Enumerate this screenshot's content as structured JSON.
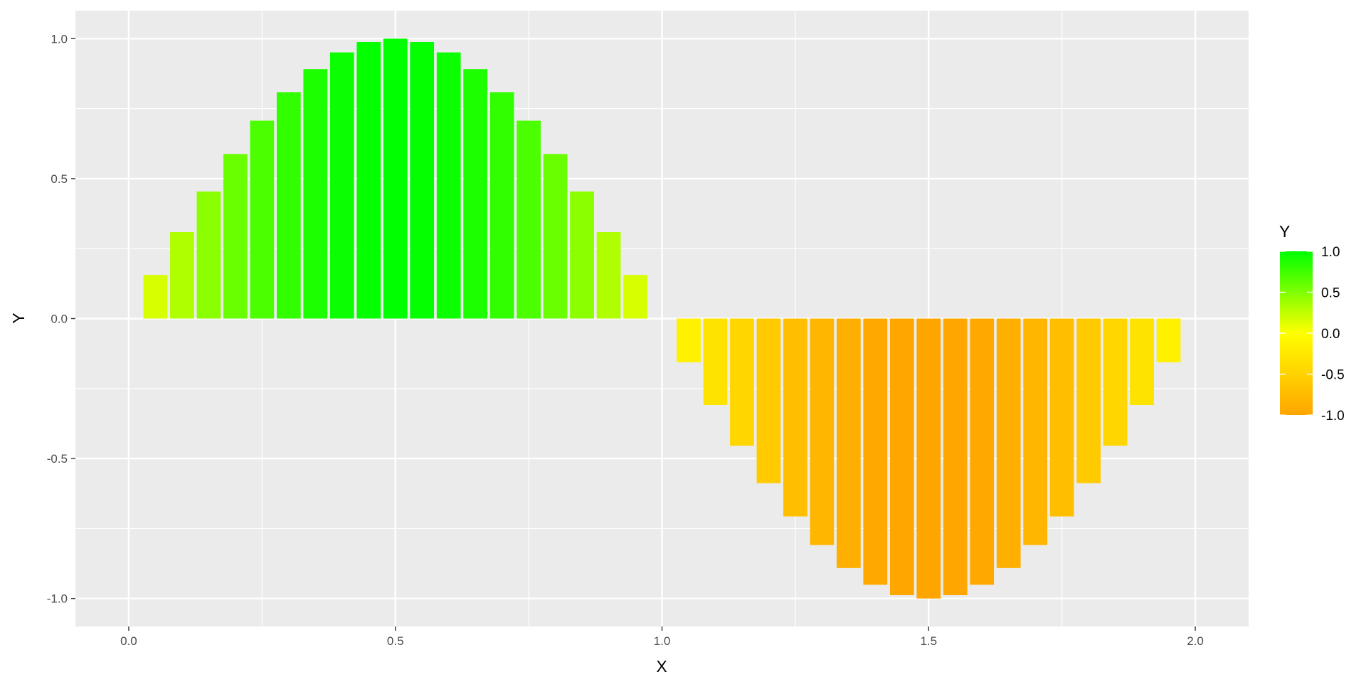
{
  "chart_data": {
    "type": "bar",
    "xlabel": "X",
    "ylabel": "Y",
    "xlim": [
      -0.1,
      2.1
    ],
    "ylim": [
      -1.1,
      1.1
    ],
    "x_ticks": [
      0.0,
      0.5,
      1.0,
      1.5,
      2.0
    ],
    "x_tick_labels": [
      "0.0",
      "0.5",
      "1.0",
      "1.5",
      "2.0"
    ],
    "y_ticks": [
      -1.0,
      -0.5,
      0.0,
      0.5,
      1.0
    ],
    "y_tick_labels": [
      "-1.0",
      "-0.5",
      "0.0",
      "0.5",
      "1.0"
    ],
    "grid": true,
    "bar_width": 0.045,
    "x": [
      0.05,
      0.1,
      0.15,
      0.2,
      0.25,
      0.3,
      0.35,
      0.4,
      0.45,
      0.5,
      0.55,
      0.6,
      0.65,
      0.7,
      0.75,
      0.8,
      0.85,
      0.9,
      0.95,
      1.05,
      1.1,
      1.15,
      1.2,
      1.25,
      1.3,
      1.35,
      1.4,
      1.45,
      1.5,
      1.55,
      1.6,
      1.65,
      1.7,
      1.75,
      1.8,
      1.85,
      1.9,
      1.95
    ],
    "values": [
      0.156,
      0.309,
      0.454,
      0.588,
      0.707,
      0.809,
      0.891,
      0.951,
      0.988,
      1.0,
      0.988,
      0.951,
      0.891,
      0.809,
      0.707,
      0.588,
      0.454,
      0.309,
      0.156,
      -0.156,
      -0.309,
      -0.454,
      -0.588,
      -0.707,
      -0.809,
      -0.891,
      -0.951,
      -0.988,
      -1.0,
      -0.988,
      -0.951,
      -0.891,
      -0.809,
      -0.707,
      -0.588,
      -0.454,
      -0.309,
      -0.156
    ],
    "legend": {
      "title": "Y",
      "placement": "right",
      "breaks": [
        1.0,
        0.5,
        0.0,
        -0.5,
        -1.0
      ],
      "labels": [
        "1.0",
        "0.5",
        "0.0",
        "-0.5",
        "-1.0"
      ]
    },
    "colors": {
      "high": "#00ff00",
      "mid": "#ffff00",
      "low": "#ffa500",
      "panel": "#ebebeb",
      "grid": "#ffffff"
    }
  }
}
